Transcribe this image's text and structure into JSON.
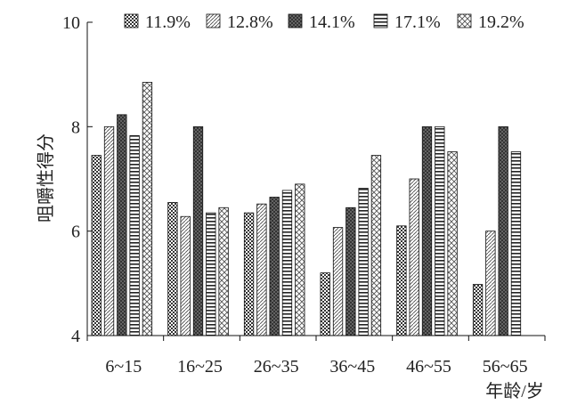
{
  "chart_data": {
    "type": "bar",
    "categories": [
      "6~15",
      "16~25",
      "26~35",
      "36~45",
      "46~55",
      "56~65"
    ],
    "series": [
      {
        "name": "11.9%",
        "values": [
          7.45,
          6.55,
          6.35,
          5.2,
          6.1,
          4.98
        ]
      },
      {
        "name": "12.8%",
        "values": [
          8.0,
          6.28,
          6.52,
          6.07,
          7.0,
          6.0
        ]
      },
      {
        "name": "14.1%",
        "values": [
          8.23,
          8.0,
          6.65,
          6.45,
          8.0,
          8.0
        ]
      },
      {
        "name": "17.1%",
        "values": [
          7.83,
          6.35,
          6.78,
          6.82,
          8.0,
          7.52
        ]
      },
      {
        "name": "19.2%",
        "values": [
          8.85,
          6.45,
          6.9,
          7.45,
          7.52,
          null
        ]
      }
    ],
    "title": "",
    "xlabel": "年龄/岁",
    "ylabel": "咀嚼性得分",
    "ylim": [
      4,
      10
    ],
    "yticks": [
      "4",
      "6",
      "8",
      "10"
    ],
    "grid": false,
    "legend": "top"
  }
}
